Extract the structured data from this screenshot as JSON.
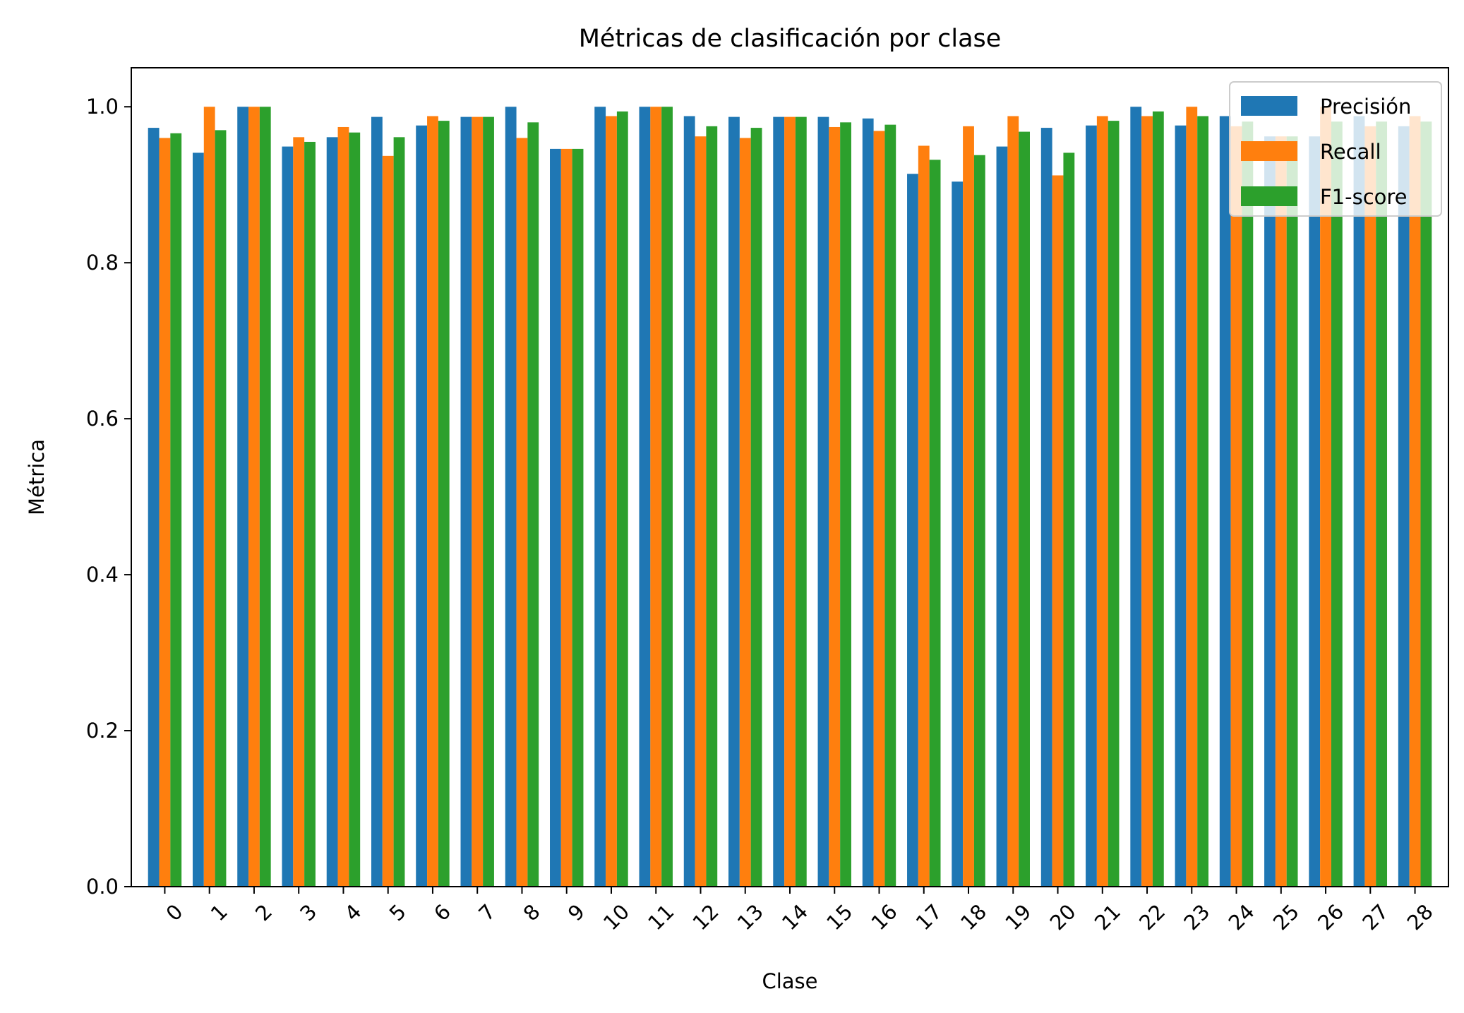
{
  "chart_data": {
    "type": "bar",
    "title": "Métricas de clasificación por clase",
    "xlabel": "Clase",
    "ylabel": "Métrica",
    "ylim": [
      0,
      1.05
    ],
    "yticks": [
      "0.0",
      "0.2",
      "0.4",
      "0.6",
      "0.8",
      "1.0"
    ],
    "categories": [
      "0",
      "1",
      "2",
      "3",
      "4",
      "5",
      "6",
      "7",
      "8",
      "9",
      "10",
      "11",
      "12",
      "13",
      "14",
      "15",
      "16",
      "17",
      "18",
      "19",
      "20",
      "21",
      "22",
      "23",
      "24",
      "25",
      "26",
      "27",
      "28"
    ],
    "series": [
      {
        "name": "Precisión",
        "color": "#1f77b4",
        "values": [
          0.973,
          0.941,
          1.0,
          0.949,
          0.961,
          0.987,
          0.976,
          0.987,
          1.0,
          0.946,
          1.0,
          1.0,
          0.988,
          0.987,
          0.987,
          0.987,
          0.985,
          0.914,
          0.904,
          0.949,
          0.973,
          0.976,
          1.0,
          0.976,
          0.988,
          0.962,
          0.962,
          0.988,
          0.975
        ]
      },
      {
        "name": "Recall",
        "color": "#ff7f0e",
        "values": [
          0.96,
          1.0,
          1.0,
          0.961,
          0.974,
          0.937,
          0.988,
          0.987,
          0.96,
          0.946,
          0.988,
          1.0,
          0.962,
          0.96,
          0.987,
          0.974,
          0.969,
          0.95,
          0.975,
          0.988,
          0.912,
          0.988,
          0.988,
          1.0,
          0.975,
          0.962,
          1.0,
          0.975,
          0.988
        ]
      },
      {
        "name": "F1-score",
        "color": "#2ca02c",
        "values": [
          0.966,
          0.97,
          1.0,
          0.955,
          0.967,
          0.961,
          0.982,
          0.987,
          0.98,
          0.946,
          0.994,
          1.0,
          0.975,
          0.973,
          0.987,
          0.98,
          0.977,
          0.932,
          0.938,
          0.968,
          0.941,
          0.982,
          0.994,
          0.988,
          0.981,
          0.962,
          0.981,
          0.981,
          0.981
        ]
      }
    ],
    "legend_position": "top-right",
    "grid": false
  }
}
